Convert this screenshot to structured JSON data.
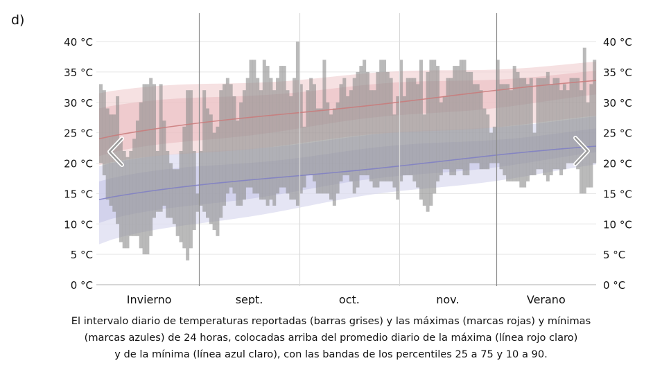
{
  "panel_label": "d)",
  "caption": {
    "lines": [
      "El intervalo diario de temperaturas reportadas (barras grises) y las máximas (marcas rojas) y mínimas",
      "(marcas azules) de 24 horas, colocadas arriba del promedio diario de la máxima (línea rojo claro)",
      "y de la mínima (línea azul claro), con las bandas de los percentiles 25 a 75 y 10 a 90."
    ]
  },
  "navigation": {
    "prev_icon": "chevron-left-icon",
    "next_icon": "chevron-right-icon"
  },
  "colors": {
    "bar": "#8f8f8f",
    "max_line": "#c97a7a",
    "min_line": "#7f7fc4",
    "max_band_outer": "#f2d4d6",
    "max_band_inner": "#e9b9bd",
    "min_band_outer": "#dcdcf0",
    "min_band_inner": "#c4c4e6",
    "grid": "#e6e6e6",
    "divider_dark": "#8c8c8c",
    "divider_light": "#d9d9d9"
  },
  "chart_data": {
    "type": "bar",
    "title": "",
    "xlabel": "",
    "ylabel": "",
    "ylim": [
      0,
      40
    ],
    "y_ticks": [
      {
        "value": 40,
        "label": "40 °C"
      },
      {
        "value": 35,
        "label": "35 °C"
      },
      {
        "value": 30,
        "label": "30 °C"
      },
      {
        "value": 25,
        "label": "25 °C"
      },
      {
        "value": 20,
        "label": "20 °C"
      },
      {
        "value": 15,
        "label": "15 °C"
      },
      {
        "value": 10,
        "label": "10 °C"
      },
      {
        "value": 5,
        "label": "5 °C"
      },
      {
        "value": 0,
        "label": "0 °C"
      }
    ],
    "x_sections": [
      {
        "label": "Invierno",
        "start_day": 0,
        "end_day": 30
      },
      {
        "label": "sept.",
        "start_day": 30,
        "end_day": 60
      },
      {
        "label": "oct.",
        "start_day": 60,
        "end_day": 90
      },
      {
        "label": "nov.",
        "start_day": 90,
        "end_day": 119
      },
      {
        "label": "Verano",
        "start_day": 119,
        "end_day": 149
      }
    ],
    "dividers": [
      {
        "day": 30,
        "style": "dark"
      },
      {
        "day": 60,
        "style": "light"
      },
      {
        "day": 90,
        "style": "light"
      },
      {
        "day": 119,
        "style": "dark"
      }
    ],
    "days": 149,
    "daily_range": {
      "max": [
        33,
        32,
        29,
        28,
        28,
        31,
        24,
        22,
        21,
        22,
        24,
        27,
        30,
        33,
        33,
        34,
        33,
        22,
        33,
        27,
        22,
        20,
        19,
        19,
        22,
        26,
        32,
        32,
        22,
        15,
        22,
        32,
        29,
        28,
        25,
        26,
        32,
        33,
        34,
        33,
        31,
        27,
        30,
        32,
        34,
        37,
        37,
        34,
        32,
        37,
        36,
        34,
        32,
        34,
        36,
        36,
        32,
        31,
        34,
        40,
        33,
        26,
        32,
        34,
        33,
        29,
        29,
        37,
        30,
        28,
        29,
        30,
        33,
        34,
        31,
        32,
        34,
        35,
        36,
        37,
        35,
        32,
        32,
        35,
        37,
        37,
        35,
        34,
        28,
        31,
        37,
        31,
        34,
        34,
        34,
        33,
        37,
        28,
        35,
        37,
        37,
        36,
        30,
        31,
        34,
        34,
        36,
        36,
        37,
        37,
        35,
        35,
        33,
        33,
        32,
        29,
        28,
        25,
        26,
        37,
        33,
        33,
        33,
        32,
        36,
        35,
        34,
        34,
        33,
        34,
        25,
        34,
        34,
        34,
        35,
        33,
        34,
        34,
        32,
        33,
        32,
        34,
        34,
        34,
        32,
        39,
        30,
        33,
        37
      ],
      "min": [
        20,
        18,
        14,
        13,
        12,
        10,
        7,
        6,
        6,
        8,
        8,
        8,
        6,
        5,
        5,
        8,
        11,
        12,
        12,
        13,
        11,
        11,
        10,
        8,
        7,
        6,
        4,
        6,
        9,
        12,
        13,
        12,
        11,
        10,
        9,
        8,
        11,
        13,
        15,
        16,
        15,
        13,
        13,
        14,
        16,
        16,
        15,
        15,
        14,
        14,
        13,
        14,
        13,
        15,
        16,
        16,
        15,
        14,
        14,
        13,
        15,
        16,
        18,
        18,
        17,
        15,
        15,
        15,
        15,
        14,
        13,
        15,
        17,
        18,
        18,
        17,
        15,
        16,
        18,
        18,
        18,
        17,
        16,
        16,
        17,
        17,
        17,
        17,
        16,
        14,
        17,
        18,
        18,
        18,
        17,
        16,
        14,
        13,
        12,
        13,
        15,
        17,
        18,
        19,
        19,
        18,
        18,
        19,
        19,
        18,
        18,
        20,
        20,
        20,
        19,
        19,
        19,
        20,
        20,
        20,
        19,
        18,
        17,
        17,
        17,
        17,
        16,
        16,
        17,
        18,
        18,
        19,
        19,
        18,
        17,
        18,
        19,
        19,
        18,
        19,
        20,
        20,
        20,
        19,
        15,
        15,
        16,
        16,
        20
      ]
    },
    "avg_max": {
      "start": 24,
      "end": 33.5
    },
    "avg_min": {
      "start": 14,
      "end": 22.7
    },
    "max_p25_p75": {
      "start": [
        21,
        29
      ],
      "end": [
        31,
        35
      ]
    },
    "max_p10_p90": {
      "start": [
        19.5,
        31.5
      ],
      "end": [
        27.5,
        36.5
      ]
    },
    "min_p25_p75": {
      "start": [
        10,
        17
      ],
      "end": [
        21.5,
        25.5
      ]
    },
    "min_p10_p90": {
      "start": [
        6.5,
        19.5
      ],
      "end": [
        19.5,
        27.5
      ]
    }
  }
}
